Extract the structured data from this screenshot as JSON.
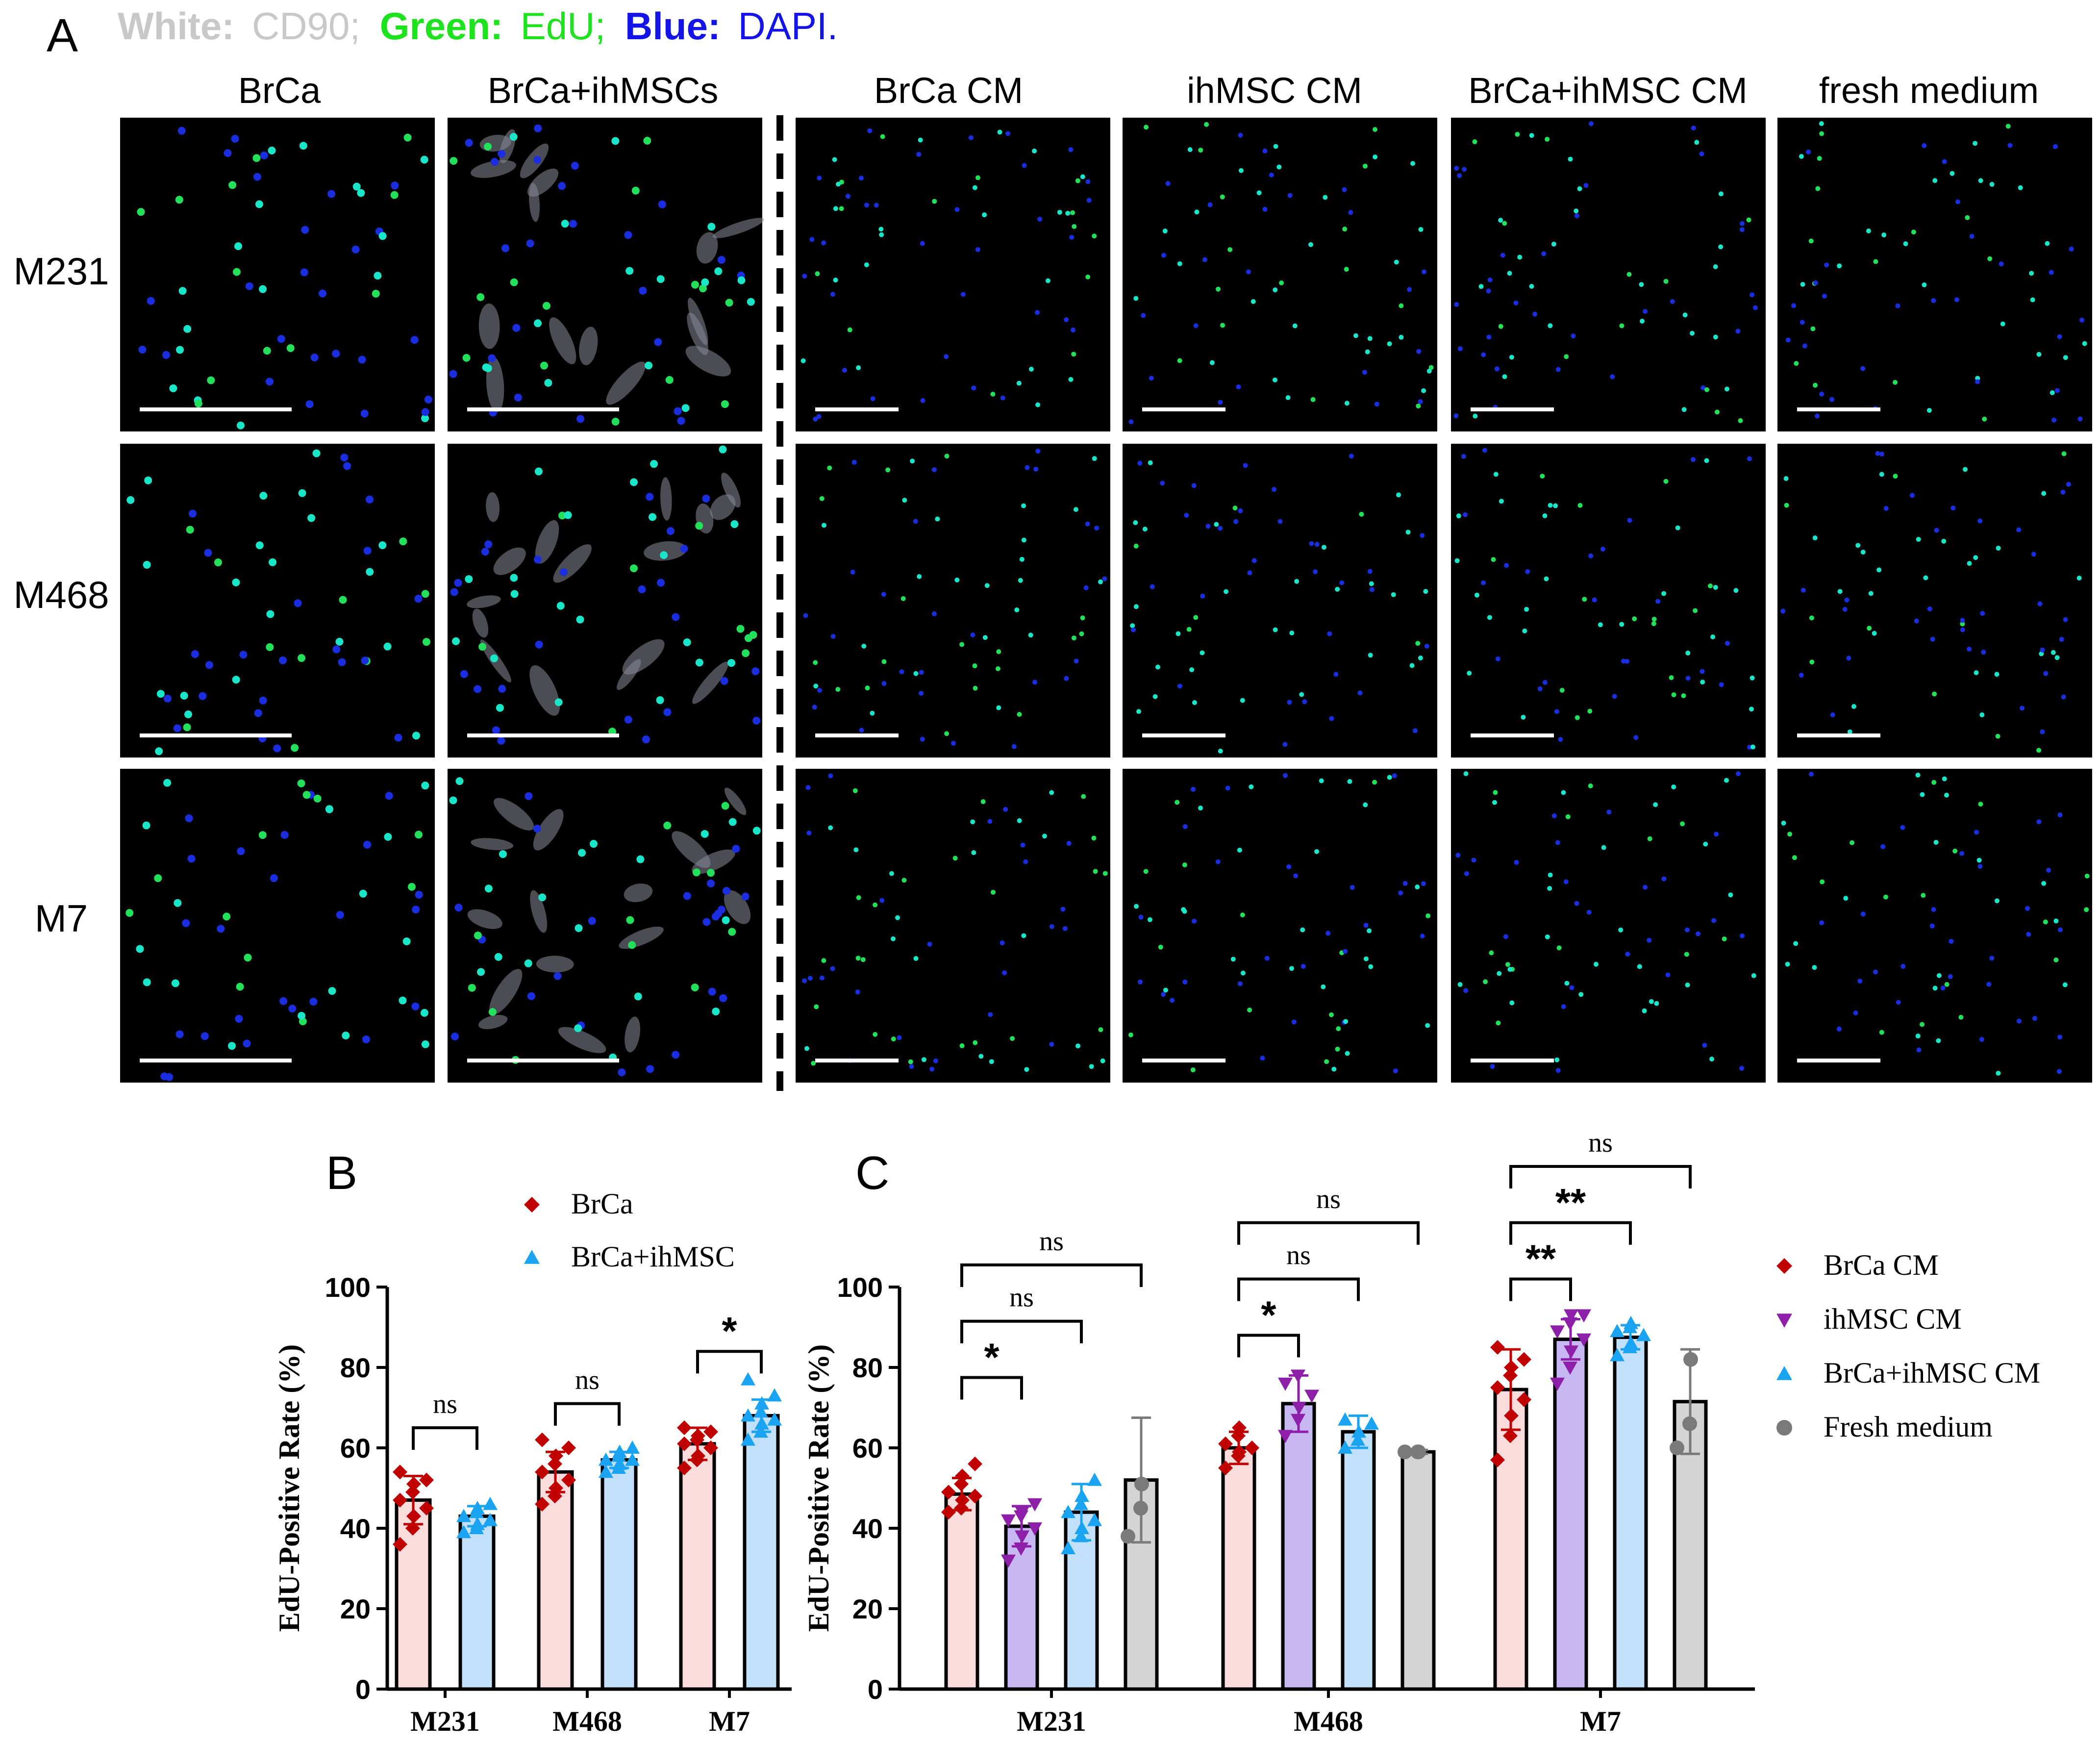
{
  "panel_a": {
    "letter": "A",
    "stain_legend": [
      {
        "label": "White:",
        "value": "CD90;",
        "color": "#c8c8c8"
      },
      {
        "label": "Green:",
        "value": "EdU;",
        "color": "#1fe21f"
      },
      {
        "label": "Blue:",
        "value": "DAPI.",
        "color": "#1414e6"
      }
    ],
    "columns": [
      "BrCa",
      "BrCa+ihMSCs",
      "BrCa CM",
      "ihMSC CM",
      "BrCa+ihMSC CM",
      "fresh medium"
    ],
    "rows": [
      "M231",
      "M468",
      "M7"
    ],
    "mixed_columns": [
      1
    ],
    "divider_after_column": 1
  },
  "chart_data": [
    {
      "panel": "B",
      "type": "bar",
      "ylabel": "EdU-Positive Rate (%)",
      "ylim": [
        0,
        100
      ],
      "yticks": [
        0,
        20,
        40,
        60,
        80,
        100
      ],
      "categories": [
        "M231",
        "M468",
        "M7"
      ],
      "legend_position": "top",
      "series": [
        {
          "name": "BrCa",
          "marker": "diamond",
          "color": "#c00000",
          "bar_color": "#fbdcdc",
          "values": [
            47,
            54,
            61
          ],
          "sd": [
            6,
            5,
            4
          ],
          "points": [
            [
              36,
              40,
              43,
              45,
              47,
              49,
              51,
              52,
              54
            ],
            [
              46,
              48,
              50,
              52,
              54,
              56,
              58,
              60,
              62
            ],
            [
              55,
              57,
              58,
              60,
              61,
              62,
              63,
              64,
              65
            ]
          ]
        },
        {
          "name": "BrCa+ihMSC",
          "marker": "triangle",
          "color": "#1aa3f0",
          "bar_color": "#c3e0fb",
          "values": [
            43,
            57,
            68
          ],
          "sd": [
            2.5,
            2,
            4
          ],
          "points": [
            [
              39,
              40,
              41,
              42,
              43,
              44,
              45,
              46
            ],
            [
              54,
              55,
              56,
              57,
              57,
              58,
              59,
              60
            ],
            [
              62,
              64,
              66,
              67,
              68,
              69,
              71,
              73,
              77
            ]
          ]
        }
      ],
      "significance": [
        {
          "category": "M231",
          "label": "ns"
        },
        {
          "category": "M468",
          "label": "ns"
        },
        {
          "category": "M7",
          "label": "*"
        }
      ]
    },
    {
      "panel": "C",
      "type": "bar",
      "ylabel": "EdU-Positive Rate (%)",
      "ylim": [
        0,
        100
      ],
      "yticks": [
        0,
        20,
        40,
        60,
        80,
        100
      ],
      "categories": [
        "M231",
        "M468",
        "M7"
      ],
      "legend_position": "right",
      "series": [
        {
          "name": "BrCa CM",
          "marker": "diamond",
          "color": "#c00000",
          "bar_color": "#fbdcdc",
          "values": [
            48.5,
            60,
            74.5
          ],
          "sd": [
            4,
            4,
            10
          ],
          "points": [
            [
              44,
              45,
              47,
              48,
              49,
              51,
              53,
              56
            ],
            [
              55,
              58,
              59,
              60,
              61,
              63,
              65
            ],
            [
              57,
              63,
              68,
              72,
              75,
              78,
              80,
              82,
              85
            ]
          ]
        },
        {
          "name": "ihMSC CM",
          "marker": "triangle-down",
          "color": "#8e1fa8",
          "bar_color": "#c7b8f4",
          "values": [
            40.5,
            71,
            87
          ],
          "sd": [
            5,
            7,
            5
          ],
          "points": [
            [
              32,
              35,
              38,
              40,
              42,
              43,
              44,
              46
            ],
            [
              63,
              67,
              70,
              73,
              76,
              78
            ],
            [
              76,
              80,
              84,
              87,
              89,
              91,
              93,
              93
            ]
          ]
        },
        {
          "name": "BrCa+ihMSC CM",
          "marker": "triangle",
          "color": "#1aa3f0",
          "bar_color": "#c3e0fb",
          "values": [
            44,
            64,
            87.5
          ],
          "sd": [
            7,
            4,
            3
          ],
          "points": [
            [
              35,
              38,
              40,
              42,
              44,
              46,
              48,
              52
            ],
            [
              60,
              62,
              64,
              66,
              67
            ],
            [
              83,
              85,
              86,
              88,
              89,
              90,
              91
            ]
          ]
        },
        {
          "name": "Fresh medium",
          "marker": "circle",
          "color": "#7a7a7a",
          "bar_color": "#d4d4d4",
          "values": [
            52,
            59,
            71.5
          ],
          "sd": [
            15.5,
            0.5,
            13
          ],
          "points": [
            [
              38,
              45,
              51
            ],
            [
              59,
              59,
              59
            ],
            [
              60,
              66,
              82
            ]
          ]
        }
      ],
      "significance": [
        {
          "category": "M231",
          "from": "BrCa CM",
          "to": "ihMSC CM",
          "label": "*"
        },
        {
          "category": "M231",
          "from": "BrCa CM",
          "to": "BrCa+ihMSC CM",
          "label": "ns"
        },
        {
          "category": "M231",
          "from": "BrCa CM",
          "to": "Fresh medium",
          "label": "ns"
        },
        {
          "category": "M468",
          "from": "BrCa CM",
          "to": "ihMSC CM",
          "label": "*"
        },
        {
          "category": "M468",
          "from": "BrCa CM",
          "to": "BrCa+ihMSC CM",
          "label": "ns"
        },
        {
          "category": "M468",
          "from": "BrCa CM",
          "to": "Fresh medium",
          "label": "ns"
        },
        {
          "category": "M7",
          "from": "BrCa CM",
          "to": "ihMSC CM",
          "label": "**"
        },
        {
          "category": "M7",
          "from": "BrCa CM",
          "to": "BrCa+ihMSC CM",
          "label": "**"
        },
        {
          "category": "M7",
          "from": "BrCa CM",
          "to": "Fresh medium",
          "label": "ns"
        }
      ]
    }
  ]
}
